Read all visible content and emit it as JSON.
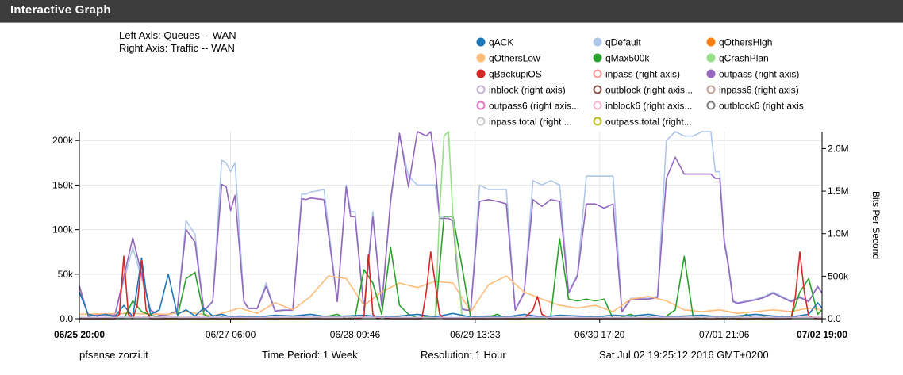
{
  "header": {
    "title": "Interactive Graph"
  },
  "axis_info": {
    "left": "Left Axis: Queues -- WAN",
    "right": "Right Axis: Traffic -- WAN"
  },
  "footer": {
    "host": "pfsense.zorzi.it",
    "period": "Time Period: 1 Week",
    "resolution": "Resolution: 1 Hour",
    "timestamp": "Sat Jul 02 19:25:12 2016 GMT+0200"
  },
  "chart_data": {
    "type": "line",
    "title": "",
    "xlabel": "",
    "ylabel": "",
    "y2label": "Bits Per Second",
    "x_ticks": [
      "06/25 20:00",
      "06/27 06:00",
      "06/28 09:46",
      "06/29 13:33",
      "06/30 17:20",
      "07/01 21:06",
      "07/02 19:00"
    ],
    "x_ticks_bold": [
      true,
      false,
      false,
      false,
      false,
      false,
      true
    ],
    "x_tick_positions": [
      0,
      34,
      62,
      89,
      117,
      145,
      167
    ],
    "xlim": [
      0,
      167
    ],
    "y_ticks": [
      "0.0",
      "50k",
      "100k",
      "150k",
      "200k"
    ],
    "ylim": [
      0,
      210000
    ],
    "y2_ticks": [
      "0.0",
      "500k",
      "1.0M",
      "1.5M",
      "2.0M"
    ],
    "y2lim": [
      0,
      2200000
    ],
    "grid": true,
    "legend_position": "top-right",
    "legend": [
      {
        "name": "qACK",
        "color": "#1f77b4",
        "filled": true
      },
      {
        "name": "qDefault",
        "color": "#aec7e8",
        "filled": true
      },
      {
        "name": "qOthersHigh",
        "color": "#ff7f0e",
        "filled": true
      },
      {
        "name": "qOthersLow",
        "color": "#ffbb78",
        "filled": true
      },
      {
        "name": "qMax500k",
        "color": "#2ca02c",
        "filled": true
      },
      {
        "name": "qCrashPlan",
        "color": "#98df8a",
        "filled": true
      },
      {
        "name": "qBackupiOS",
        "color": "#d62728",
        "filled": true
      },
      {
        "name": "inpass (right axis)",
        "color": "#ff9896",
        "filled": false
      },
      {
        "name": "outpass (right axis)",
        "color": "#9467bd",
        "filled": true
      },
      {
        "name": "inblock (right axis)",
        "color": "#c5b0d5",
        "filled": false
      },
      {
        "name": "outblock (right axis...",
        "color": "#8c564b",
        "filled": false
      },
      {
        "name": "inpass6 (right axis)",
        "color": "#c49c94",
        "filled": false
      },
      {
        "name": "outpass6 (right axis...",
        "color": "#e377c2",
        "filled": false
      },
      {
        "name": "inblock6 (right axis...",
        "color": "#f7b6d2",
        "filled": false
      },
      {
        "name": "outblock6 (right axis",
        "color": "#7f7f7f",
        "filled": false
      },
      {
        "name": "inpass total (right ...",
        "color": "#c7c7c7",
        "filled": false
      },
      {
        "name": "outpass total (right...",
        "color": "#bcbd22",
        "filled": false
      }
    ],
    "series": [
      {
        "name": "qDefault",
        "color": "#aec7e8",
        "axis": "left",
        "x": [
          0,
          2,
          5,
          8,
          12,
          16,
          18,
          20,
          22,
          24,
          26,
          28,
          30,
          32,
          33,
          34,
          35,
          37,
          38,
          40,
          42,
          44,
          46,
          48,
          50,
          51,
          52,
          55,
          58,
          60,
          61,
          62,
          64,
          66,
          68,
          70,
          72,
          74,
          76,
          78,
          79,
          80,
          81,
          82,
          83,
          84,
          85,
          86,
          87,
          88,
          90,
          92,
          94,
          96,
          98,
          100,
          102,
          104,
          106,
          108,
          110,
          112,
          114,
          116,
          118,
          120,
          122,
          124,
          126,
          128,
          130,
          132,
          134,
          136,
          138,
          140,
          142,
          143,
          144,
          145,
          146,
          147,
          148,
          150,
          152,
          154,
          156,
          158,
          160,
          162,
          164,
          166,
          167
        ],
        "y": [
          38000,
          3000,
          5000,
          4000,
          80000,
          10000,
          4000,
          4000,
          10000,
          110000,
          95000,
          9000,
          20000,
          178000,
          175000,
          165000,
          175000,
          20000,
          12000,
          12000,
          40000,
          9000,
          10000,
          10000,
          140000,
          140000,
          142000,
          145000,
          20000,
          150000,
          120000,
          120000,
          10000,
          120000,
          15000,
          130000,
          205000,
          160000,
          150000,
          150000,
          150000,
          150000,
          115000,
          115000,
          115000,
          115000,
          60000,
          10000,
          10000,
          10000,
          150000,
          145000,
          145000,
          145000,
          10000,
          30000,
          155000,
          150000,
          155000,
          150000,
          30000,
          50000,
          160000,
          160000,
          160000,
          160000,
          8000,
          23000,
          23000,
          23000,
          25000,
          200000,
          210000,
          205000,
          205000,
          210000,
          210000,
          165000,
          165000,
          90000,
          60000,
          20000,
          18000,
          20000,
          22000,
          25000,
          30000,
          25000,
          20000,
          25000,
          20000,
          35000,
          30000
        ]
      },
      {
        "name": "outpass (right axis)",
        "color": "#9467bd",
        "axis": "right",
        "x": [
          0,
          2,
          5,
          8,
          12,
          16,
          18,
          20,
          22,
          24,
          26,
          28,
          30,
          32,
          33,
          34,
          35,
          37,
          38,
          40,
          42,
          44,
          46,
          48,
          50,
          51,
          52,
          55,
          58,
          60,
          61,
          62,
          64,
          66,
          68,
          70,
          72,
          74,
          76,
          78,
          79,
          80,
          81,
          82,
          83,
          84,
          85,
          86,
          87,
          88,
          90,
          92,
          94,
          96,
          98,
          100,
          102,
          104,
          106,
          108,
          110,
          112,
          114,
          116,
          118,
          120,
          122,
          124,
          126,
          128,
          130,
          132,
          134,
          136,
          138,
          140,
          142,
          143,
          144,
          145,
          146,
          147,
          148,
          150,
          152,
          154,
          156,
          158,
          160,
          162,
          164,
          166,
          167
        ],
        "y": [
          380000,
          30000,
          50000,
          40000,
          950000,
          100000,
          40000,
          50000,
          90000,
          1050000,
          900000,
          90000,
          200000,
          1580000,
          1550000,
          1270000,
          1450000,
          200000,
          120000,
          120000,
          380000,
          90000,
          100000,
          100000,
          1410000,
          1400000,
          1420000,
          1400000,
          200000,
          1550000,
          1200000,
          1200000,
          100000,
          1200000,
          150000,
          1400000,
          2180000,
          1550000,
          2200000,
          2150000,
          2200000,
          1820000,
          1180000,
          1180000,
          1180000,
          1150000,
          550000,
          120000,
          100000,
          100000,
          1380000,
          1400000,
          1380000,
          1350000,
          100000,
          300000,
          1400000,
          1320000,
          1400000,
          1380000,
          300000,
          500000,
          1350000,
          1350000,
          1300000,
          1350000,
          80000,
          230000,
          230000,
          230000,
          250000,
          1650000,
          1900000,
          1700000,
          1700000,
          1700000,
          1700000,
          1650000,
          1650000,
          900000,
          600000,
          200000,
          180000,
          200000,
          220000,
          250000,
          300000,
          250000,
          200000,
          250000,
          200000,
          380000,
          300000
        ]
      },
      {
        "name": "qOthersLow",
        "color": "#ffbb78",
        "axis": "left",
        "x": [
          0,
          10,
          20,
          24,
          30,
          36,
          40,
          44,
          48,
          52,
          56,
          60,
          64,
          68,
          72,
          76,
          80,
          84,
          88,
          92,
          96,
          100,
          104,
          108,
          112,
          116,
          120,
          124,
          128,
          132,
          136,
          140,
          144,
          148,
          152,
          156,
          160,
          164,
          167
        ],
        "y": [
          5000,
          6000,
          5000,
          8000,
          3000,
          12000,
          6000,
          18000,
          10000,
          25000,
          48000,
          45000,
          15000,
          30000,
          40000,
          35000,
          42000,
          40000,
          8000,
          38000,
          48000,
          30000,
          22000,
          15000,
          12000,
          15000,
          8000,
          22000,
          25000,
          20000,
          10000,
          8000,
          10000,
          6000,
          8000,
          10000,
          8000,
          12000,
          10000
        ]
      },
      {
        "name": "qMax500k",
        "color": "#2ca02c",
        "axis": "left",
        "x": [
          0,
          6,
          8,
          10,
          12,
          14,
          16,
          18,
          20,
          22,
          24,
          26,
          28,
          30,
          32,
          34,
          36,
          40,
          44,
          48,
          52,
          56,
          58,
          60,
          62,
          64,
          66,
          68,
          70,
          72,
          74,
          76,
          78,
          80,
          82,
          84,
          86,
          88,
          90,
          92,
          94,
          96,
          98,
          100,
          102,
          104,
          106,
          108,
          110,
          112,
          114,
          116,
          118,
          120,
          122,
          124,
          126,
          128,
          130,
          132,
          134,
          136,
          138,
          140,
          142,
          144,
          146,
          148,
          150,
          152,
          154,
          156,
          158,
          160,
          162,
          164,
          166,
          167
        ],
        "y": [
          0,
          1000,
          2000,
          0,
          20000,
          8000,
          4000,
          2000,
          0,
          1000,
          45000,
          52000,
          5000,
          0,
          2000,
          0,
          1000,
          2000,
          0,
          1000,
          0,
          3000,
          5000,
          0,
          2000,
          55000,
          40000,
          5000,
          80000,
          15000,
          5000,
          1000,
          2000,
          0,
          115000,
          115000,
          60000,
          1000,
          0,
          2000,
          5000,
          0,
          2000,
          0,
          1000,
          0,
          3000,
          90000,
          22000,
          20000,
          22000,
          20000,
          22000,
          0,
          2000,
          5000,
          0,
          2000,
          0,
          3000,
          10000,
          70000,
          2000,
          0,
          3000,
          0,
          2000,
          0,
          5000,
          0,
          2000,
          0,
          3000,
          0,
          30000,
          45000,
          5000,
          10000
        ]
      },
      {
        "name": "qCrashPlan",
        "color": "#98df8a",
        "axis": "left",
        "x": [
          0,
          80,
          81,
          82,
          83,
          84,
          85,
          86,
          87,
          88,
          167
        ],
        "y": [
          0,
          0,
          120000,
          205000,
          210000,
          115000,
          60000,
          5000,
          0,
          0,
          0
        ]
      },
      {
        "name": "qACK",
        "color": "#1f77b4",
        "axis": "left",
        "x": [
          0,
          2,
          4,
          6,
          8,
          10,
          12,
          14,
          15,
          16,
          18,
          20,
          22,
          24,
          26,
          28,
          30,
          32,
          34,
          36,
          40,
          44,
          48,
          52,
          56,
          60,
          64,
          68,
          72,
          76,
          80,
          84,
          88,
          92,
          96,
          100,
          104,
          108,
          112,
          116,
          120,
          124,
          128,
          132,
          136,
          140,
          144,
          148,
          152,
          156,
          160,
          164,
          166,
          167
        ],
        "y": [
          30000,
          5000,
          3000,
          5000,
          2000,
          15000,
          2000,
          68000,
          30000,
          5000,
          10000,
          50000,
          5000,
          10000,
          3000,
          12000,
          3000,
          5000,
          2000,
          3000,
          2000,
          4000,
          3000,
          5000,
          2000,
          3000,
          4000,
          2000,
          3000,
          5000,
          2000,
          6000,
          2000,
          3000,
          2000,
          5000,
          2000,
          4000,
          3000,
          2000,
          4000,
          3000,
          5000,
          2000,
          3000,
          4000,
          2000,
          3000,
          5000,
          3000,
          2000,
          5000,
          18000,
          12000
        ]
      },
      {
        "name": "qBackupiOS",
        "color": "#d62728",
        "axis": "left",
        "x": [
          0,
          8,
          9,
          10,
          11,
          12,
          13,
          14,
          15,
          16,
          18,
          62,
          64,
          65,
          66,
          67,
          68,
          70,
          77,
          78,
          79,
          80,
          81,
          82,
          100,
          102,
          103,
          104,
          106,
          160,
          161,
          162,
          163,
          164,
          166,
          167
        ],
        "y": [
          0,
          0,
          5000,
          70000,
          5000,
          0,
          15000,
          65000,
          10000,
          0,
          0,
          0,
          2000,
          72000,
          5000,
          0,
          2000,
          0,
          0,
          30000,
          75000,
          40000,
          5000,
          0,
          0,
          10000,
          25000,
          5000,
          0,
          0,
          25000,
          75000,
          30000,
          3000,
          0,
          0
        ]
      },
      {
        "name": "inblock (right axis)",
        "color": "#c5b0d5",
        "axis": "right",
        "x": [
          0,
          20,
          40,
          60,
          80,
          100,
          120,
          140,
          160,
          167
        ],
        "y": [
          15000,
          18000,
          16000,
          20000,
          14000,
          17000,
          15000,
          19000,
          16000,
          18000
        ]
      }
    ]
  }
}
